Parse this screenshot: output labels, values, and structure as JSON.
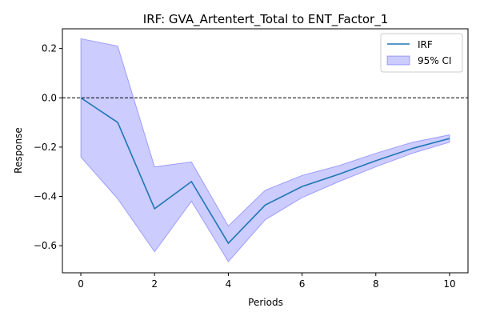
{
  "chart_data": {
    "type": "line",
    "title": "IRF: GVA_Artentert_Total to ENT_Factor_1",
    "xlabel": "Periods",
    "ylabel": "Response",
    "xlim": [
      -0.5,
      10.5
    ],
    "ylim": [
      -0.71,
      0.28
    ],
    "x_ticks": [
      0,
      2,
      4,
      6,
      8,
      10
    ],
    "y_ticks": [
      0.2,
      0.0,
      -0.2,
      -0.4,
      -0.6
    ],
    "y_tick_labels": [
      "0.2",
      "0.0",
      "−0.2",
      "−0.4",
      "−0.6"
    ],
    "x": [
      0,
      1,
      2,
      3,
      4,
      5,
      6,
      7,
      8,
      9,
      10
    ],
    "series": [
      {
        "name": "IRF",
        "values": [
          0.0,
          -0.1,
          -0.45,
          -0.34,
          -0.59,
          -0.435,
          -0.36,
          -0.31,
          -0.255,
          -0.205,
          -0.165
        ],
        "color": "#1f77b4"
      }
    ],
    "confidence_band": {
      "name": "95% CI",
      "lower": [
        -0.24,
        -0.41,
        -0.625,
        -0.42,
        -0.665,
        -0.495,
        -0.405,
        -0.34,
        -0.28,
        -0.225,
        -0.18
      ],
      "upper": [
        0.24,
        0.21,
        -0.28,
        -0.26,
        -0.52,
        -0.375,
        -0.315,
        -0.275,
        -0.225,
        -0.18,
        -0.15
      ],
      "fill_color": "#0000ff",
      "fill_opacity": 0.2
    },
    "reference_line": {
      "y": 0.0,
      "style": "dashed",
      "color": "#000000"
    },
    "legend": {
      "position": "top-right",
      "entries": [
        "IRF",
        "95% CI"
      ]
    },
    "grid": false
  }
}
